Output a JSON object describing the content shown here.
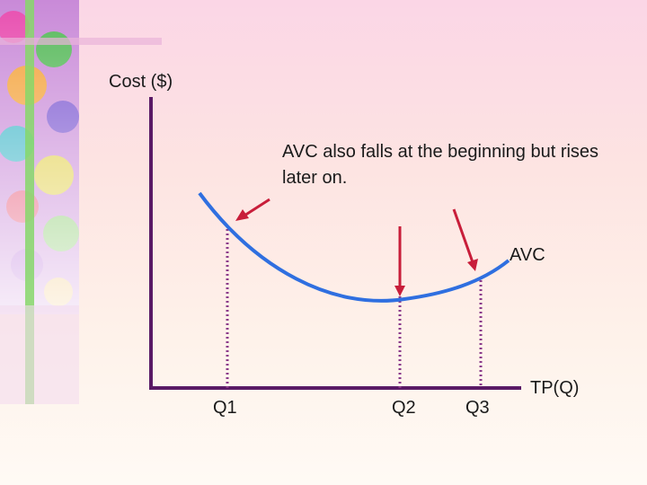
{
  "diagram": {
    "y_axis_label": "Cost ($)",
    "x_axis_label": "TP(Q)",
    "curve_label": "AVC",
    "annotation": "AVC also falls at the beginning but rises later on.",
    "quantities": [
      "Q1",
      "Q2",
      "Q3"
    ]
  },
  "colors": {
    "axis": "#5a1a66",
    "curve": "#2f6fe0",
    "arrow": "#c81e3a",
    "guide": "#8a3a8a"
  }
}
